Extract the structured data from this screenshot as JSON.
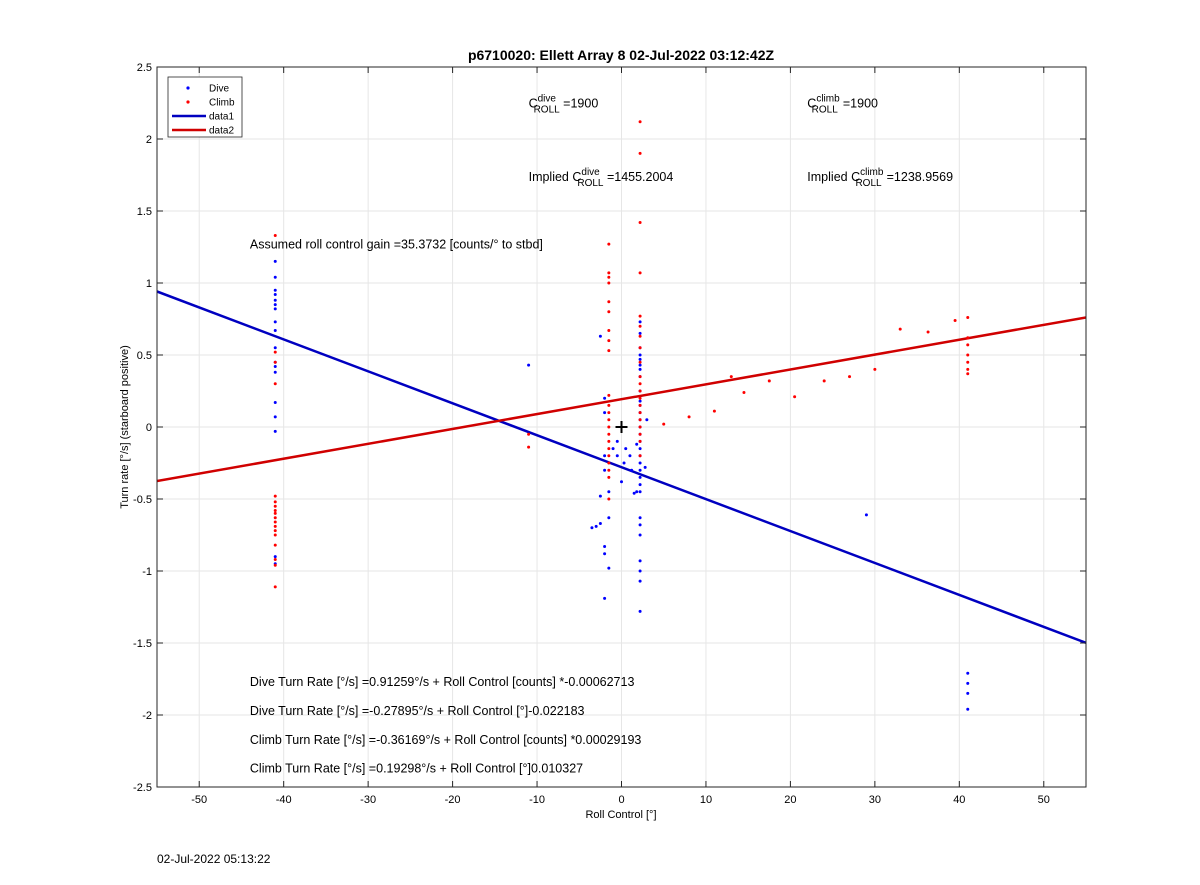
{
  "chart_data": {
    "type": "scatter",
    "title": "p6710020: Ellett Array 8 02-Jul-2022 03:12:42Z",
    "xlabel": "Roll Control [°]",
    "ylabel": "Turn rate [°/s] (starboard positive)",
    "xlim": [
      -55,
      55
    ],
    "ylim": [
      -2.5,
      2.5
    ],
    "xticks": [
      -50,
      -40,
      -30,
      -20,
      -10,
      0,
      10,
      20,
      30,
      40,
      50
    ],
    "yticks": [
      -2.5,
      -2,
      -1.5,
      -1,
      -0.5,
      0,
      0.5,
      1,
      1.5,
      2,
      2.5
    ],
    "xtick_labels": [
      "-50",
      "-40",
      "-30",
      "-20",
      "-10",
      "0",
      "10",
      "20",
      "30",
      "40",
      "50"
    ],
    "ytick_labels": [
      "-2.5",
      "-2",
      "-1.5",
      "-1",
      "-0.5",
      "0",
      "0.5",
      "1",
      "1.5",
      "2",
      "2.5"
    ],
    "grid": true,
    "legend_position": "top-left",
    "legend": [
      {
        "label": "Dive",
        "kind": "marker",
        "color": "#0000ff"
      },
      {
        "label": "Climb",
        "kind": "marker",
        "color": "#ff0000"
      },
      {
        "label": "data1",
        "kind": "line",
        "color": "#0000c0"
      },
      {
        "label": "data2",
        "kind": "line",
        "color": "#d00000"
      }
    ],
    "series": [
      {
        "name": "Dive",
        "color": "#0000ff",
        "points": [
          [
            -41,
            1.15
          ],
          [
            -41,
            1.04
          ],
          [
            -41,
            0.95
          ],
          [
            -41,
            0.92
          ],
          [
            -41,
            0.88
          ],
          [
            -41,
            0.85
          ],
          [
            -41,
            0.82
          ],
          [
            -41,
            0.73
          ],
          [
            -41,
            0.67
          ],
          [
            -41,
            0.55
          ],
          [
            -41,
            0.45
          ],
          [
            -41,
            0.42
          ],
          [
            -41,
            0.38
          ],
          [
            -41,
            0.17
          ],
          [
            -41,
            0.07
          ],
          [
            -41,
            -0.03
          ],
          [
            -41,
            -0.9
          ],
          [
            -41,
            -0.95
          ],
          [
            -11,
            0.43
          ],
          [
            -2.5,
            0.63
          ],
          [
            -2,
            0.2
          ],
          [
            -2,
            0.1
          ],
          [
            -2,
            -0.2
          ],
          [
            -2,
            -0.3
          ],
          [
            -2.5,
            -0.48
          ],
          [
            -2.5,
            -0.67
          ],
          [
            -2,
            -0.83
          ],
          [
            -2,
            -0.88
          ],
          [
            -1.5,
            -0.98
          ],
          [
            -2,
            -1.19
          ],
          [
            -3,
            -0.69
          ],
          [
            -3.5,
            -0.7
          ],
          [
            -1.5,
            -0.63
          ],
          [
            -1.5,
            -0.45
          ],
          [
            -1,
            -0.15
          ],
          [
            -0.5,
            -0.1
          ],
          [
            -0.5,
            -0.2
          ],
          [
            0,
            -0.38
          ],
          [
            0.3,
            -0.25
          ],
          [
            0.5,
            -0.15
          ],
          [
            1,
            -0.2
          ],
          [
            1.2,
            -0.3
          ],
          [
            1.5,
            -0.46
          ],
          [
            1.8,
            -0.45
          ],
          [
            2.2,
            0.73
          ],
          [
            2.2,
            0.65
          ],
          [
            2.2,
            0.55
          ],
          [
            2.2,
            0.5
          ],
          [
            2.2,
            0.47
          ],
          [
            2.2,
            0.43
          ],
          [
            2.2,
            0.4
          ],
          [
            2.2,
            0.35
          ],
          [
            2.2,
            0.25
          ],
          [
            2.2,
            0.18
          ],
          [
            2.2,
            0.15
          ],
          [
            2.2,
            0.1
          ],
          [
            2.2,
            0.05
          ],
          [
            2.2,
            0.0
          ],
          [
            2.2,
            -0.05
          ],
          [
            2.2,
            -0.1
          ],
          [
            2.2,
            -0.15
          ],
          [
            2.2,
            -0.2
          ],
          [
            2.2,
            -0.25
          ],
          [
            2.2,
            -0.3
          ],
          [
            2.2,
            -0.35
          ],
          [
            2.2,
            -0.4
          ],
          [
            2.2,
            -0.45
          ],
          [
            2.2,
            -0.63
          ],
          [
            2.2,
            -0.68
          ],
          [
            2.2,
            -0.75
          ],
          [
            2.2,
            -0.93
          ],
          [
            2.2,
            -1.0
          ],
          [
            2.2,
            -1.07
          ],
          [
            2.2,
            -1.28
          ],
          [
            3,
            0.05
          ],
          [
            2.8,
            -0.28
          ],
          [
            1.8,
            -0.12
          ],
          [
            29,
            -0.61
          ],
          [
            41,
            -1.71
          ],
          [
            41,
            -1.78
          ],
          [
            41,
            -1.85
          ],
          [
            41,
            -1.96
          ]
        ]
      },
      {
        "name": "Climb",
        "color": "#ff0000",
        "points": [
          [
            -41,
            1.33
          ],
          [
            -41,
            0.52
          ],
          [
            -41,
            0.45
          ],
          [
            -41,
            0.3
          ],
          [
            -41,
            -0.48
          ],
          [
            -41,
            -0.52
          ],
          [
            -41,
            -0.55
          ],
          [
            -41,
            -0.58
          ],
          [
            -41,
            -0.6
          ],
          [
            -41,
            -0.63
          ],
          [
            -41,
            -0.66
          ],
          [
            -41,
            -0.69
          ],
          [
            -41,
            -0.72
          ],
          [
            -41,
            -0.75
          ],
          [
            -41,
            -0.82
          ],
          [
            -41,
            -0.92
          ],
          [
            -41,
            -0.96
          ],
          [
            -41,
            -1.11
          ],
          [
            -11,
            -0.05
          ],
          [
            -11,
            -0.14
          ],
          [
            -1.5,
            1.27
          ],
          [
            -1.5,
            1.07
          ],
          [
            -1.5,
            1.04
          ],
          [
            -1.5,
            1.0
          ],
          [
            -1.5,
            0.87
          ],
          [
            -1.5,
            0.8
          ],
          [
            -1.5,
            0.67
          ],
          [
            -1.5,
            0.6
          ],
          [
            -1.5,
            0.53
          ],
          [
            -1.5,
            0.22
          ],
          [
            -1.5,
            0.15
          ],
          [
            -1.5,
            0.1
          ],
          [
            -1.5,
            0.05
          ],
          [
            -1.5,
            0.0
          ],
          [
            -1.5,
            -0.05
          ],
          [
            -1.5,
            -0.1
          ],
          [
            -1.5,
            -0.15
          ],
          [
            -1.5,
            -0.2
          ],
          [
            -1.5,
            -0.25
          ],
          [
            -1.5,
            -0.3
          ],
          [
            -1.5,
            -0.35
          ],
          [
            -1.5,
            -0.5
          ],
          [
            2.2,
            2.12
          ],
          [
            2.2,
            1.9
          ],
          [
            2.2,
            1.42
          ],
          [
            2.2,
            1.07
          ],
          [
            2.2,
            0.77
          ],
          [
            2.2,
            0.7
          ],
          [
            2.2,
            0.63
          ],
          [
            2.2,
            0.55
          ],
          [
            2.2,
            0.45
          ],
          [
            2.2,
            0.35
          ],
          [
            2.2,
            0.3
          ],
          [
            2.2,
            0.25
          ],
          [
            2.2,
            0.2
          ],
          [
            2.2,
            0.15
          ],
          [
            2.2,
            0.1
          ],
          [
            2.2,
            0.05
          ],
          [
            2.2,
            0.0
          ],
          [
            2.2,
            -0.05
          ],
          [
            2.2,
            -0.1
          ],
          [
            2.2,
            -0.2
          ],
          [
            5,
            0.02
          ],
          [
            8,
            0.07
          ],
          [
            11,
            0.11
          ],
          [
            13,
            0.35
          ],
          [
            14.5,
            0.24
          ],
          [
            17.5,
            0.32
          ],
          [
            20.5,
            0.21
          ],
          [
            24,
            0.32
          ],
          [
            27,
            0.35
          ],
          [
            30,
            0.4
          ],
          [
            33,
            0.68
          ],
          [
            36.3,
            0.66
          ],
          [
            39.5,
            0.74
          ],
          [
            41,
            0.76
          ],
          [
            41,
            0.62
          ],
          [
            41,
            0.57
          ],
          [
            41,
            0.5
          ],
          [
            41,
            0.45
          ],
          [
            41,
            0.4
          ],
          [
            41,
            0.37
          ]
        ]
      }
    ],
    "lines": [
      {
        "name": "data1",
        "color": "#0000c0",
        "intercept": -0.27895,
        "slope": -0.022183
      },
      {
        "name": "data2",
        "color": "#d00000",
        "intercept": 0.19298,
        "slope": 0.010327
      }
    ],
    "marker": {
      "kind": "plus",
      "x": 0,
      "y": 0,
      "color": "#000000"
    },
    "annotations": [
      {
        "id": "c-dive",
        "x": -11,
        "y": 2.22,
        "prefix": "C",
        "sup": "dive",
        "sub": "ROLL",
        "text": " =1900"
      },
      {
        "id": "c-climb",
        "x": 22,
        "y": 2.22,
        "prefix": "C",
        "sup": "climb",
        "sub": "ROLL",
        "text": " =1900"
      },
      {
        "id": "implied-dive",
        "x": -11,
        "y": 1.71,
        "prefix": "Implied C",
        "sup": "dive",
        "sub": "ROLL",
        "text": " =1455.2004"
      },
      {
        "id": "implied-climb",
        "x": 22,
        "y": 1.71,
        "prefix": "Implied C",
        "sup": "climb",
        "sub": "ROLL",
        "text": " =1238.9569"
      },
      {
        "id": "roll-gain",
        "x": -44,
        "y": 1.24,
        "text": "Assumed roll control gain =35.3732 [counts/° to stbd]"
      },
      {
        "id": "dive-eq-counts",
        "x": -44,
        "y": -1.8,
        "text": "Dive Turn Rate [°/s] =0.91259°/s + Roll Control [counts] *-0.00062713"
      },
      {
        "id": "dive-eq-deg",
        "x": -44,
        "y": -2.0,
        "text": "Dive Turn Rate [°/s] =-0.27895°/s + Roll Control [°]-0.022183"
      },
      {
        "id": "climb-eq-counts",
        "x": -44,
        "y": -2.2,
        "text": "Climb Turn Rate [°/s] =-0.36169°/s + Roll Control [counts] *0.00029193"
      },
      {
        "id": "climb-eq-deg",
        "x": -44,
        "y": -2.4,
        "text": "Climb Turn Rate [°/s] =0.19298°/s + Roll Control [°]0.010327"
      }
    ]
  },
  "footer": {
    "timestamp": "02-Jul-2022 05:13:22"
  }
}
